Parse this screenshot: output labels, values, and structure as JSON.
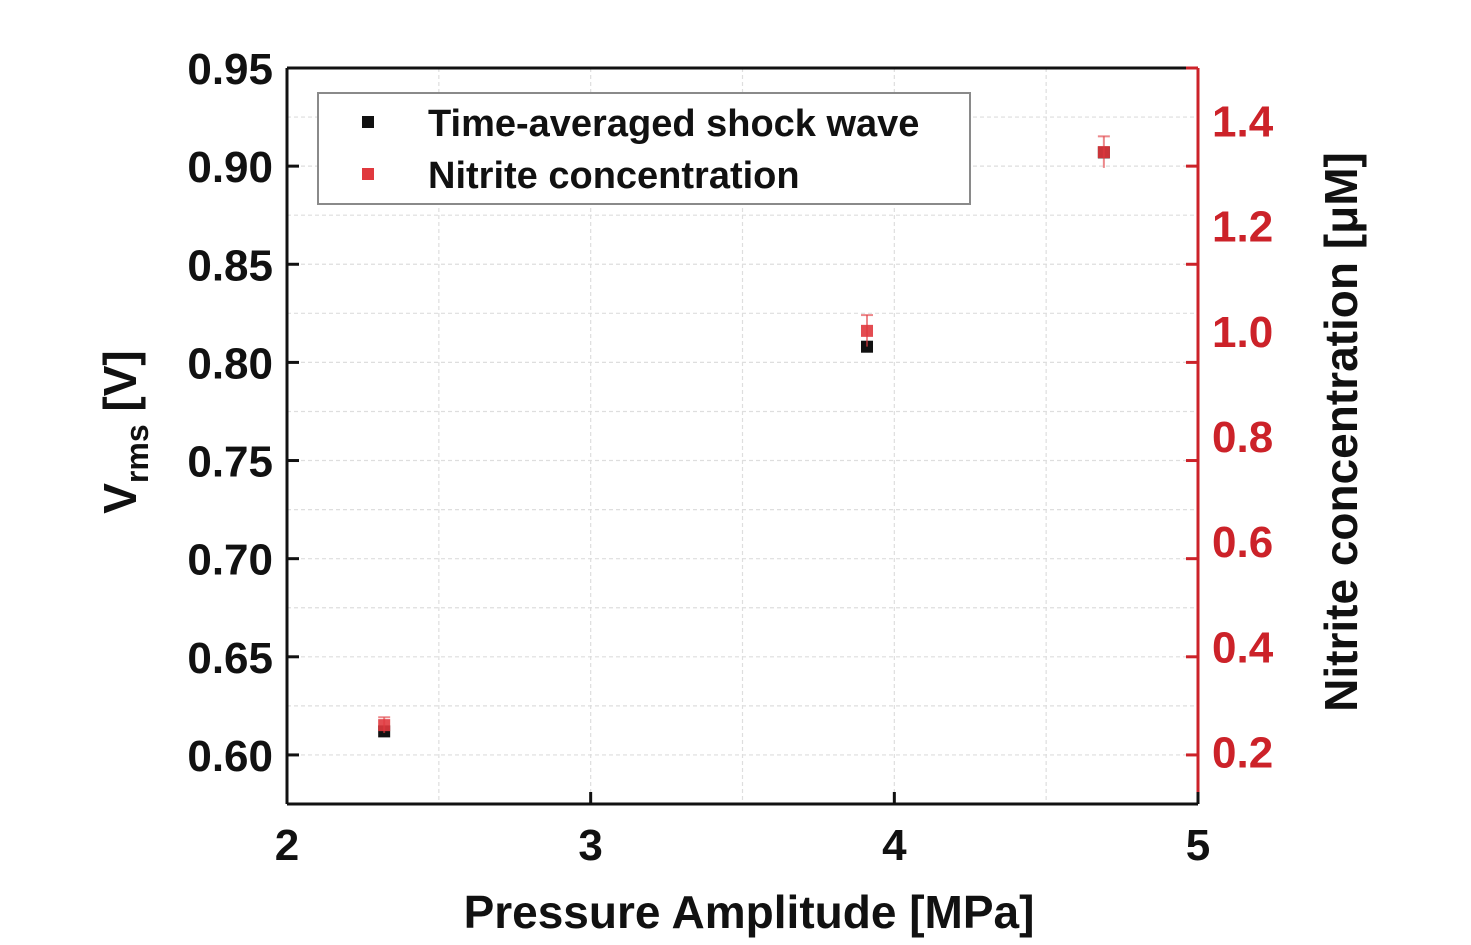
{
  "chart_data": {
    "type": "scatter",
    "title": "",
    "xlabel": "Pressure Amplitude [MPa]",
    "ylabel": {
      "main": "V",
      "sub": "rms",
      "unit": " [V]"
    },
    "y2label": "Nitrite concentration [μM]",
    "xlim": [
      2,
      5
    ],
    "ylim": [
      0.575,
      0.95
    ],
    "y2lim": [
      0.1,
      1.5
    ],
    "xticks": [
      "2",
      "3",
      "4",
      "5"
    ],
    "yticks": [
      "0.60",
      "0.65",
      "0.70",
      "0.75",
      "0.80",
      "0.85",
      "0.90",
      "0.95"
    ],
    "y2ticks": [
      "0.2",
      "0.4",
      "0.6",
      "0.8",
      "1.0",
      "1.2",
      "1.4"
    ],
    "grid": true,
    "legend_position": "top-left",
    "series": [
      {
        "name": "Time-averaged shock wave",
        "axis": "left",
        "color": "#111111",
        "x": [
          2.32,
          3.91,
          4.69
        ],
        "y": [
          0.612,
          0.808,
          0.907
        ]
      },
      {
        "name": "Nitrite concentration",
        "axis": "right",
        "color": "#e0393e",
        "x": [
          2.32,
          3.91,
          4.69
        ],
        "y": [
          0.25,
          1.0,
          1.34
        ],
        "error": [
          0.015,
          0.03,
          0.03
        ]
      }
    ],
    "colors": {
      "axis_left": "#111111",
      "axis_right": "#cc2229",
      "grid": "#dedede"
    }
  }
}
